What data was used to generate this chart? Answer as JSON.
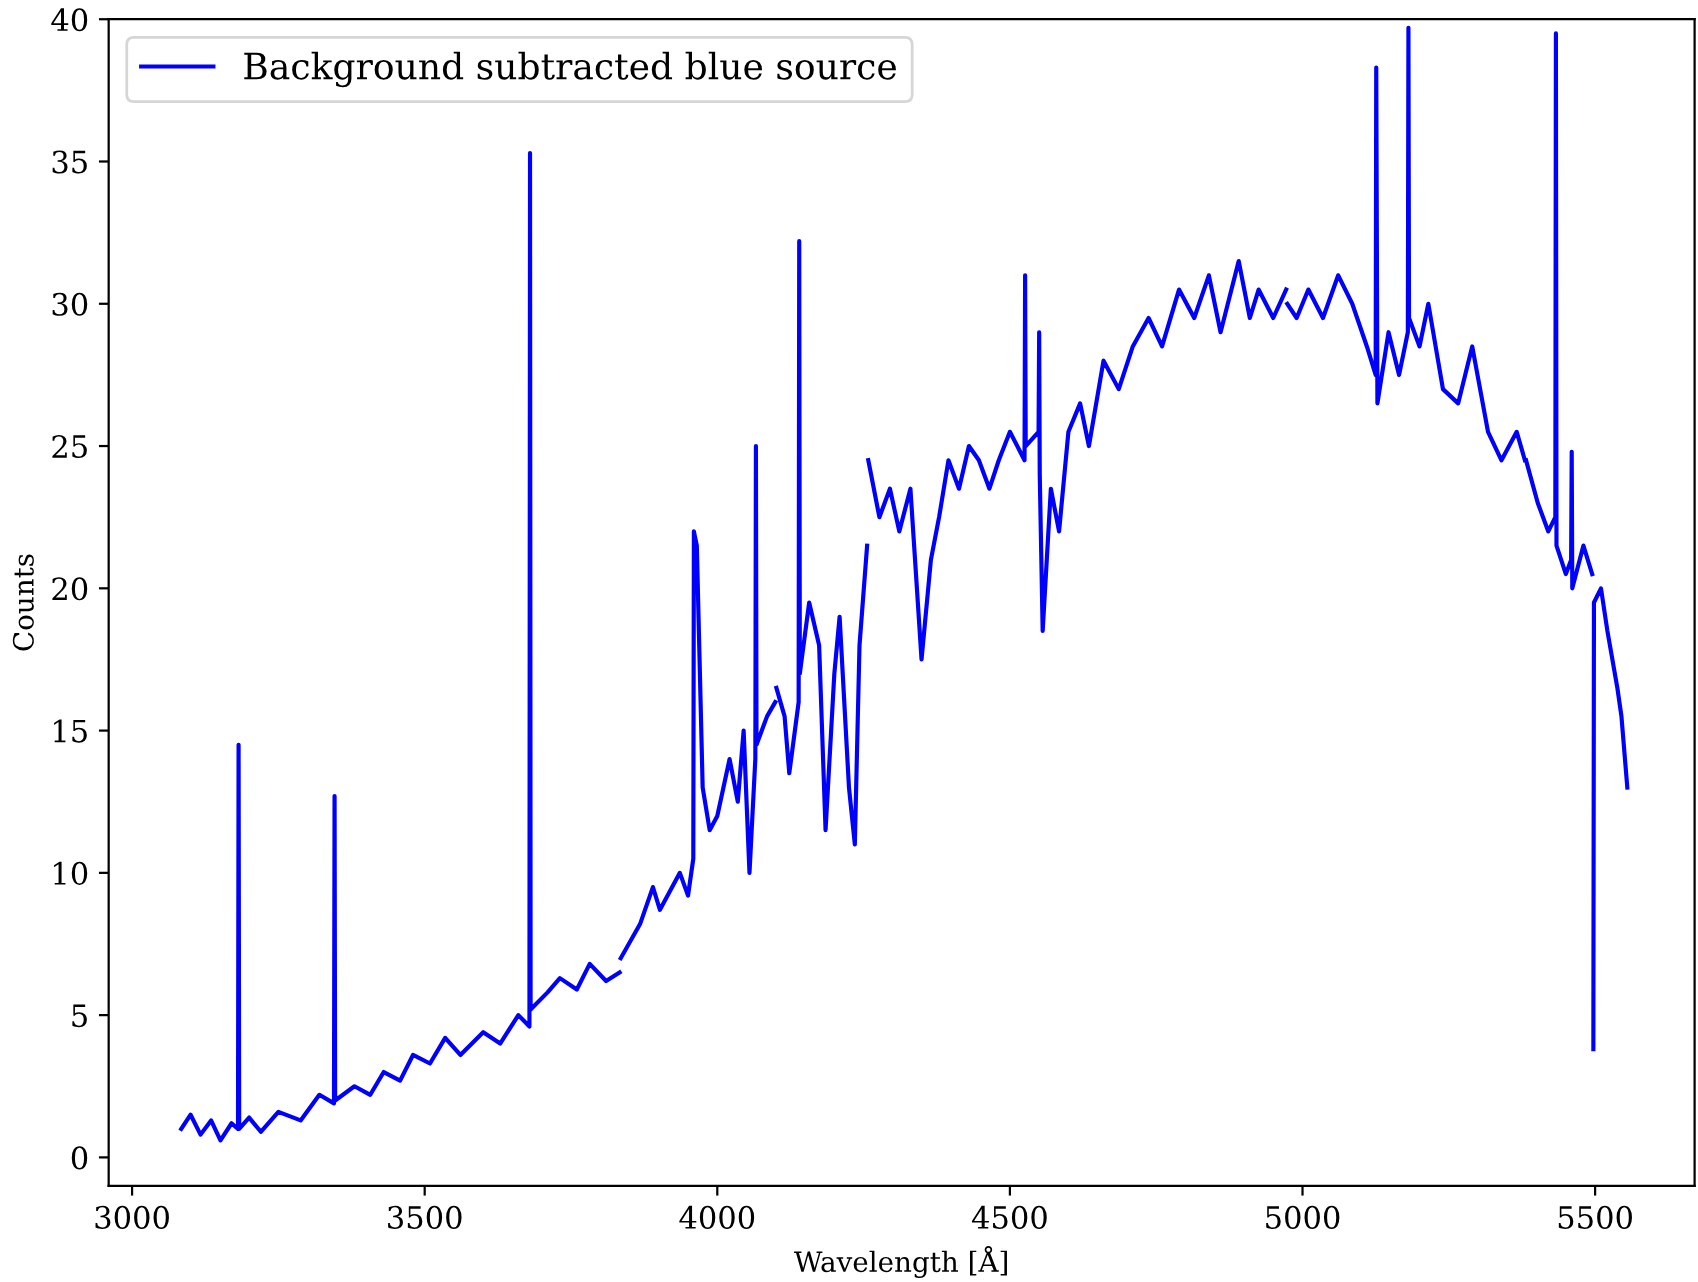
{
  "chart_data": {
    "type": "line",
    "xlabel": "Wavelength [Å]",
    "ylabel": "Counts",
    "xlim": [
      2960,
      5670
    ],
    "ylim": [
      -1,
      40
    ],
    "xticks": [
      3000,
      3500,
      4000,
      4500,
      5000,
      5500
    ],
    "yticks": [
      0,
      5,
      10,
      15,
      20,
      25,
      30,
      35,
      40
    ],
    "grid": false,
    "legend": "top left",
    "marker": "none",
    "line_style": "solid",
    "series": [
      {
        "name": "Background subtracted blue source",
        "color": "#0000ff",
        "x": [
          3084,
          3100,
          3117,
          3135,
          3151,
          3170,
          3181,
          3182,
          3183,
          3200,
          3220,
          3250,
          3288,
          3320,
          3345,
          3346,
          3347,
          3380,
          3407,
          3430,
          3458,
          3480,
          3509,
          3535,
          3561,
          3600,
          3629,
          3660,
          3679,
          3680,
          3681,
          3710,
          3731,
          3760,
          3782,
          3810,
          3833,
          3834,
          3835,
          3868,
          3890,
          3902,
          3936,
          3950,
          3959,
          3960,
          3965,
          3975,
          3987,
          4000,
          4021,
          4035,
          4045,
          4055,
          4065,
          4066,
          4067,
          4085,
          4099,
          4100,
          4101,
          4115,
          4123,
          4139,
          4140,
          4141,
          4157,
          4174,
          4185,
          4200,
          4209,
          4225,
          4235,
          4243,
          4256,
          4257,
          4258,
          4277,
          4295,
          4311,
          4330,
          4349,
          4365,
          4379,
          4395,
          4413,
          4430,
          4447,
          4465,
          4481,
          4500,
          4525,
          4526,
          4527,
          4549,
          4550,
          4551,
          4556,
          4570,
          4584,
          4600,
          4620,
          4635,
          4660,
          4686,
          4710,
          4737,
          4760,
          4789,
          4815,
          4840,
          4860,
          4891,
          4910,
          4925,
          4950,
          4972,
          4973,
          4974,
          4990,
          5010,
          5035,
          5061,
          5085,
          5110,
          5125,
          5126,
          5128,
          5147,
          5165,
          5180,
          5181,
          5182,
          5200,
          5215,
          5240,
          5266,
          5290,
          5317,
          5340,
          5366,
          5380,
          5381,
          5382,
          5402,
          5420,
          5432,
          5433,
          5434,
          5450,
          5459,
          5460,
          5461,
          5480,
          5495,
          5496,
          5497,
          5498,
          5510,
          5521,
          5538,
          5545,
          5555
        ],
        "values": [
          1.0,
          1.5,
          0.8,
          1.3,
          0.6,
          1.2,
          1.0,
          14.5,
          1.0,
          1.4,
          0.9,
          1.6,
          1.3,
          2.2,
          1.9,
          12.7,
          2.0,
          2.5,
          2.2,
          3.0,
          2.7,
          3.6,
          3.3,
          4.2,
          3.6,
          4.4,
          4.0,
          5.0,
          4.6,
          35.3,
          5.2,
          5.8,
          6.3,
          5.9,
          6.8,
          6.2,
          6.5,
          null,
          7.0,
          8.2,
          9.5,
          8.7,
          10.0,
          9.2,
          10.5,
          22.0,
          21.5,
          13,
          11.5,
          12.0,
          14.0,
          12.5,
          15.0,
          10.0,
          14,
          25.0,
          14.5,
          15.5,
          16,
          null,
          16.5,
          15.5,
          13.5,
          16,
          32.2,
          17.0,
          19.5,
          18,
          11.5,
          17.0,
          19,
          13,
          11.0,
          18.0,
          21.5,
          null,
          24.5,
          22.5,
          23.5,
          22.0,
          23.5,
          17.5,
          21.0,
          22.5,
          24.5,
          23.5,
          25.0,
          24.5,
          23.5,
          24.5,
          25.5,
          24.5,
          31.0,
          25.0,
          25.5,
          29.0,
          24.0,
          18.5,
          23.5,
          22.0,
          25.5,
          26.5,
          25.0,
          28.0,
          27.0,
          28.5,
          29.5,
          28.5,
          30.5,
          29.5,
          31.0,
          29.0,
          31.5,
          29.5,
          30.5,
          29.5,
          30.5,
          null,
          30,
          29.5,
          30.5,
          29.5,
          31.0,
          30.0,
          28.5,
          27.5,
          38.3,
          26.5,
          29.0,
          27.5,
          29.0,
          39.7,
          29.5,
          28.5,
          30.0,
          27.0,
          26.5,
          28.5,
          25.5,
          24.5,
          25.5,
          24.5,
          null,
          24.5,
          23.0,
          22.0,
          22.5,
          39.5,
          21.5,
          20.5,
          21.0,
          24.8,
          20.0,
          21.5,
          20.5,
          null,
          3.8,
          19.5,
          20.0,
          18.5,
          16.5,
          15.5,
          13.0
        ]
      }
    ]
  }
}
